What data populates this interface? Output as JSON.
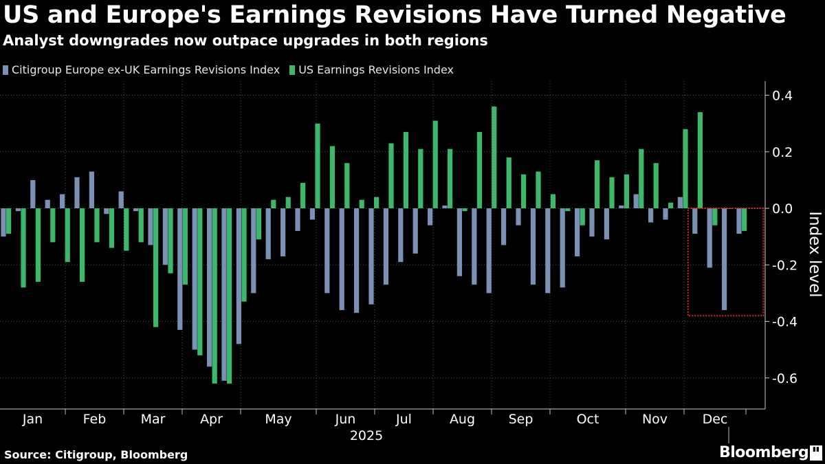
{
  "header": {
    "title": "US and Europe's Earnings Revisions Have Turned Negative",
    "subtitle": "Analyst downgrades now outpace upgrades in both regions"
  },
  "legend": [
    {
      "label": "Citigroup Europe ex-UK Earnings Revisions Index",
      "color": "#7b90b5"
    },
    {
      "label": "US Earnings Revisions Index",
      "color": "#3bb86a"
    }
  ],
  "footer": {
    "source": "Source: Citigroup, Bloomberg",
    "brand": "Bloomberg"
  },
  "colors": {
    "europe": "#7b90b5",
    "us": "#3bb86a",
    "highlight": "#e0282e",
    "grid": "#555555"
  },
  "chart_data": {
    "type": "bar",
    "title": "US and Europe's Earnings Revisions Have Turned Negative",
    "ylabel": "Index level",
    "xlabel": "2025",
    "ylim": [
      -0.71,
      0.45
    ],
    "yticks": [
      0.4,
      0.2,
      0.0,
      -0.2,
      -0.4,
      -0.6
    ],
    "ytick_labels": [
      "0.4",
      "0.2",
      "0.0",
      "-0.2",
      "-0.4",
      "-0.6"
    ],
    "months": [
      "Jan",
      "Feb",
      "Mar",
      "Apr",
      "May",
      "Jun",
      "Jul",
      "Aug",
      "Sep",
      "Oct",
      "Nov",
      "Dec"
    ],
    "year_label": "2025",
    "series": [
      {
        "name": "Citigroup Europe ex-UK Earnings Revisions Index",
        "values": [
          -0.1,
          -0.01,
          0.1,
          0.03,
          0.05,
          0.11,
          0.13,
          -0.02,
          0.06,
          -0.01,
          -0.13,
          -0.2,
          -0.43,
          -0.5,
          -0.56,
          -0.61,
          -0.48,
          -0.3,
          -0.18,
          -0.17,
          -0.08,
          -0.04,
          -0.3,
          -0.36,
          -0.37,
          -0.34,
          -0.27,
          -0.19,
          -0.16,
          -0.06,
          0.01,
          -0.24,
          -0.27,
          -0.3,
          -0.13,
          -0.06,
          -0.27,
          -0.3,
          -0.28,
          -0.17,
          -0.1,
          -0.11,
          0.01,
          0.05,
          -0.05,
          -0.04,
          0.04,
          -0.09,
          -0.21,
          -0.36,
          -0.09
        ]
      },
      {
        "name": "US Earnings Revisions Index",
        "values": [
          -0.09,
          -0.28,
          -0.26,
          -0.12,
          -0.19,
          -0.26,
          -0.12,
          -0.14,
          -0.15,
          -0.12,
          -0.42,
          -0.23,
          -0.27,
          -0.52,
          -0.62,
          -0.62,
          -0.33,
          -0.11,
          0.03,
          0.04,
          0.09,
          0.3,
          0.22,
          0.16,
          0.03,
          0.04,
          0.23,
          0.27,
          0.21,
          0.31,
          0.21,
          -0.01,
          0.27,
          0.36,
          0.18,
          0.12,
          0.13,
          0.05,
          -0.01,
          -0.06,
          0.17,
          0.11,
          0.12,
          0.21,
          0.16,
          0.02,
          0.28,
          0.34,
          -0.06,
          0.0,
          -0.08
        ]
      }
    ],
    "highlight_box": {
      "from_week": 47,
      "to_week": 51,
      "y_top": 0.0,
      "y_bottom": -0.38
    }
  }
}
